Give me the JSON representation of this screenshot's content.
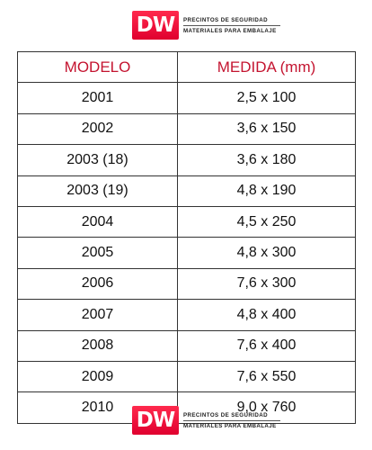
{
  "brand": {
    "badge": "DW",
    "line1": "PRECINTOS DE SEGURIDAD",
    "line2": "MATERIALES PARA EMBALAJE"
  },
  "table": {
    "headers": [
      "MODELO",
      "MEDIDA (mm)"
    ],
    "rows": [
      [
        "2001",
        "2,5 x 100"
      ],
      [
        "2002",
        "3,6 x 150"
      ],
      [
        "2003 (18)",
        "3,6 x 180"
      ],
      [
        "2003 (19)",
        "4,8 x 190"
      ],
      [
        "2004",
        "4,5 x 250"
      ],
      [
        "2005",
        "4,8 x 300"
      ],
      [
        "2006",
        "7,6 x 300"
      ],
      [
        "2007",
        "4,8 x 400"
      ],
      [
        "2008",
        "7,6 x 400"
      ],
      [
        "2009",
        "7,6 x 550"
      ],
      [
        "2010",
        "9,0 x 760"
      ]
    ]
  },
  "colors": {
    "brand_red": "#e0002f",
    "header_text": "#c41430"
  }
}
